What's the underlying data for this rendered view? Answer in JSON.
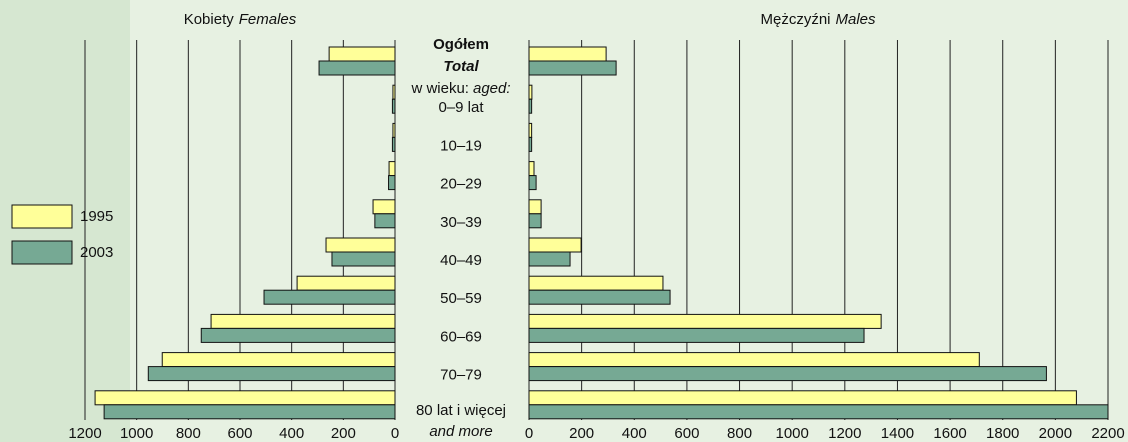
{
  "chart_data": {
    "type": "bar",
    "orientation": "horizontal",
    "category_header": "w wieku:",
    "category_header_en": "aged:",
    "categories": [
      {
        "label": "Ogółem",
        "label_en": "Total"
      },
      {
        "label": "0–9 lat"
      },
      {
        "label": "10–19"
      },
      {
        "label": "20–29"
      },
      {
        "label": "30–39"
      },
      {
        "label": "40–49"
      },
      {
        "label": "50–59"
      },
      {
        "label": "60–69"
      },
      {
        "label": "70–79"
      },
      {
        "label": "80 lat i więcej",
        "label_en": "and more"
      }
    ],
    "series": [
      {
        "name": "1995",
        "color": "#ffff99"
      },
      {
        "name": "2003",
        "color": "#76a994"
      }
    ],
    "panels": [
      {
        "title": "Kobiety",
        "title_en": "Females",
        "xlim": [
          1200,
          0
        ],
        "xticks": [
          1200,
          1000,
          800,
          600,
          400,
          200,
          0
        ],
        "values": [
          [
            255,
            8,
            8,
            23,
            85,
            267,
            379,
            712,
            901,
            1161
          ],
          [
            294,
            10,
            10,
            25,
            78,
            244,
            507,
            750,
            955,
            1126
          ]
        ]
      },
      {
        "title": "Mężczyźni",
        "title_en": "Males",
        "xlim": [
          0,
          2200
        ],
        "xticks": [
          0,
          200,
          400,
          600,
          800,
          1000,
          1200,
          1400,
          1600,
          1800,
          2000,
          2200
        ],
        "values": [
          [
            293,
            11,
            10,
            19,
            46,
            198,
            509,
            1338,
            1711,
            2080
          ],
          [
            331,
            10,
            10,
            27,
            46,
            156,
            536,
            1273,
            1966,
            2200
          ]
        ]
      }
    ]
  }
}
